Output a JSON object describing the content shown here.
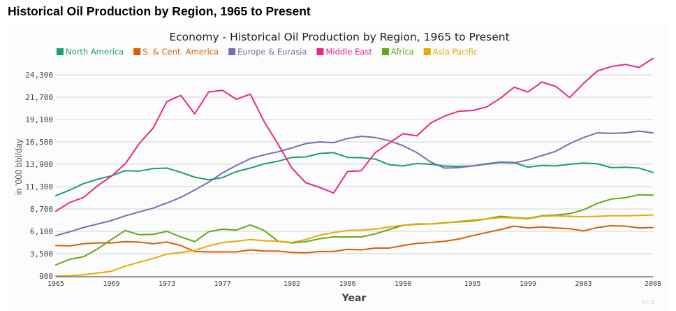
{
  "page": {
    "title": "Historical Oil Production by Region, 1965 to Present",
    "credit": "©CB"
  },
  "chart_data": {
    "type": "line",
    "title": "Economy - Historical Oil Production by Region, 1965 to Present",
    "xlabel": "Year",
    "ylabel": "in '000 bbl/day",
    "xlim": [
      1965,
      2008
    ],
    "ylim": [
      900,
      24300
    ],
    "grid": true,
    "legend_position": "top-left",
    "x_ticks": [
      "1965",
      "1969",
      "1973",
      "1977",
      "1982",
      "1986",
      "1990",
      "1995",
      "1999",
      "2003",
      "2008"
    ],
    "y_ticks": [
      "900",
      "3,500",
      "6,100",
      "8,700",
      "11,300",
      "13,900",
      "16,500",
      "19,100",
      "21,700",
      "24,300"
    ],
    "y_tick_values": [
      900,
      3500,
      6100,
      8700,
      11300,
      13900,
      16500,
      19100,
      21700,
      24300
    ],
    "x": [
      1965,
      1966,
      1967,
      1968,
      1969,
      1970,
      1971,
      1972,
      1973,
      1974,
      1975,
      1976,
      1977,
      1978,
      1979,
      1980,
      1981,
      1982,
      1983,
      1984,
      1985,
      1986,
      1987,
      1988,
      1989,
      1990,
      1991,
      1992,
      1993,
      1994,
      1995,
      1996,
      1997,
      1998,
      1999,
      2000,
      2001,
      2002,
      2003,
      2004,
      2005,
      2006,
      2007,
      2008
    ],
    "series": [
      {
        "name": "North America",
        "color": "#1b9e77",
        "values": [
          10250,
          10900,
          11650,
          12150,
          12550,
          13150,
          13100,
          13400,
          13450,
          12950,
          12400,
          12100,
          12350,
          13050,
          13450,
          13950,
          14250,
          14700,
          14750,
          15150,
          15250,
          14700,
          14650,
          14500,
          13850,
          13700,
          14000,
          13900,
          13700,
          13650,
          13700,
          13950,
          14150,
          14100,
          13550,
          13750,
          13700,
          13900,
          14050,
          13950,
          13500,
          13550,
          13450,
          12950
        ]
      },
      {
        "name": "S. & Cent. America",
        "color": "#d95f02",
        "values": [
          4450,
          4400,
          4650,
          4750,
          4750,
          4900,
          4850,
          4650,
          4850,
          4450,
          3750,
          3700,
          3700,
          3700,
          3950,
          3800,
          3800,
          3650,
          3600,
          3750,
          3750,
          4000,
          3950,
          4150,
          4150,
          4450,
          4700,
          4800,
          4950,
          5200,
          5600,
          5950,
          6300,
          6700,
          6500,
          6600,
          6500,
          6400,
          6150,
          6550,
          6750,
          6700,
          6500,
          6550
        ]
      },
      {
        "name": "Europe & Eurasia",
        "color": "#7570b3",
        "values": [
          5600,
          6050,
          6550,
          6950,
          7350,
          7900,
          8350,
          8800,
          9400,
          10050,
          10900,
          11800,
          12900,
          13750,
          14550,
          15000,
          15350,
          15800,
          16300,
          16500,
          16400,
          16900,
          17150,
          17000,
          16650,
          16050,
          15250,
          14150,
          13450,
          13500,
          13700,
          13900,
          14100,
          14050,
          14400,
          14900,
          15400,
          16300,
          17000,
          17550,
          17500,
          17550,
          17750,
          17550
        ]
      },
      {
        "name": "Middle East",
        "color": "#e7298a",
        "values": [
          8450,
          9450,
          10050,
          11400,
          12500,
          13950,
          16300,
          18100,
          21200,
          21900,
          19750,
          22300,
          22500,
          21450,
          22050,
          18850,
          16250,
          13450,
          11750,
          11200,
          10550,
          13050,
          13150,
          15250,
          16350,
          17450,
          17200,
          18700,
          19500,
          20050,
          20150,
          20550,
          21550,
          22850,
          22300,
          23450,
          22950,
          21650,
          23300,
          24750,
          25250,
          25500,
          25150,
          26200
        ]
      },
      {
        "name": "Africa",
        "color": "#66a61e",
        "values": [
          2200,
          2850,
          3150,
          4050,
          5150,
          6200,
          5700,
          5750,
          6100,
          5450,
          4900,
          6050,
          6350,
          6250,
          6850,
          6200,
          4950,
          4750,
          4900,
          5250,
          5450,
          5450,
          5450,
          5800,
          6300,
          6800,
          6950,
          6950,
          7100,
          7200,
          7300,
          7550,
          7850,
          7700,
          7600,
          7900,
          8000,
          8150,
          8600,
          9350,
          9850,
          10000,
          10350,
          10300
        ]
      },
      {
        "name": "Asia Pacific",
        "color": "#e6ab02",
        "values": [
          900,
          950,
          1050,
          1250,
          1450,
          2050,
          2500,
          2950,
          3450,
          3650,
          3900,
          4400,
          4800,
          4950,
          5150,
          5000,
          4950,
          4800,
          5150,
          5650,
          5950,
          6200,
          6250,
          6350,
          6600,
          6800,
          6900,
          6950,
          7050,
          7250,
          7400,
          7550,
          7700,
          7650,
          7550,
          7850,
          7900,
          7850,
          7800,
          7850,
          7900,
          7900,
          7950,
          8000
        ]
      }
    ]
  }
}
